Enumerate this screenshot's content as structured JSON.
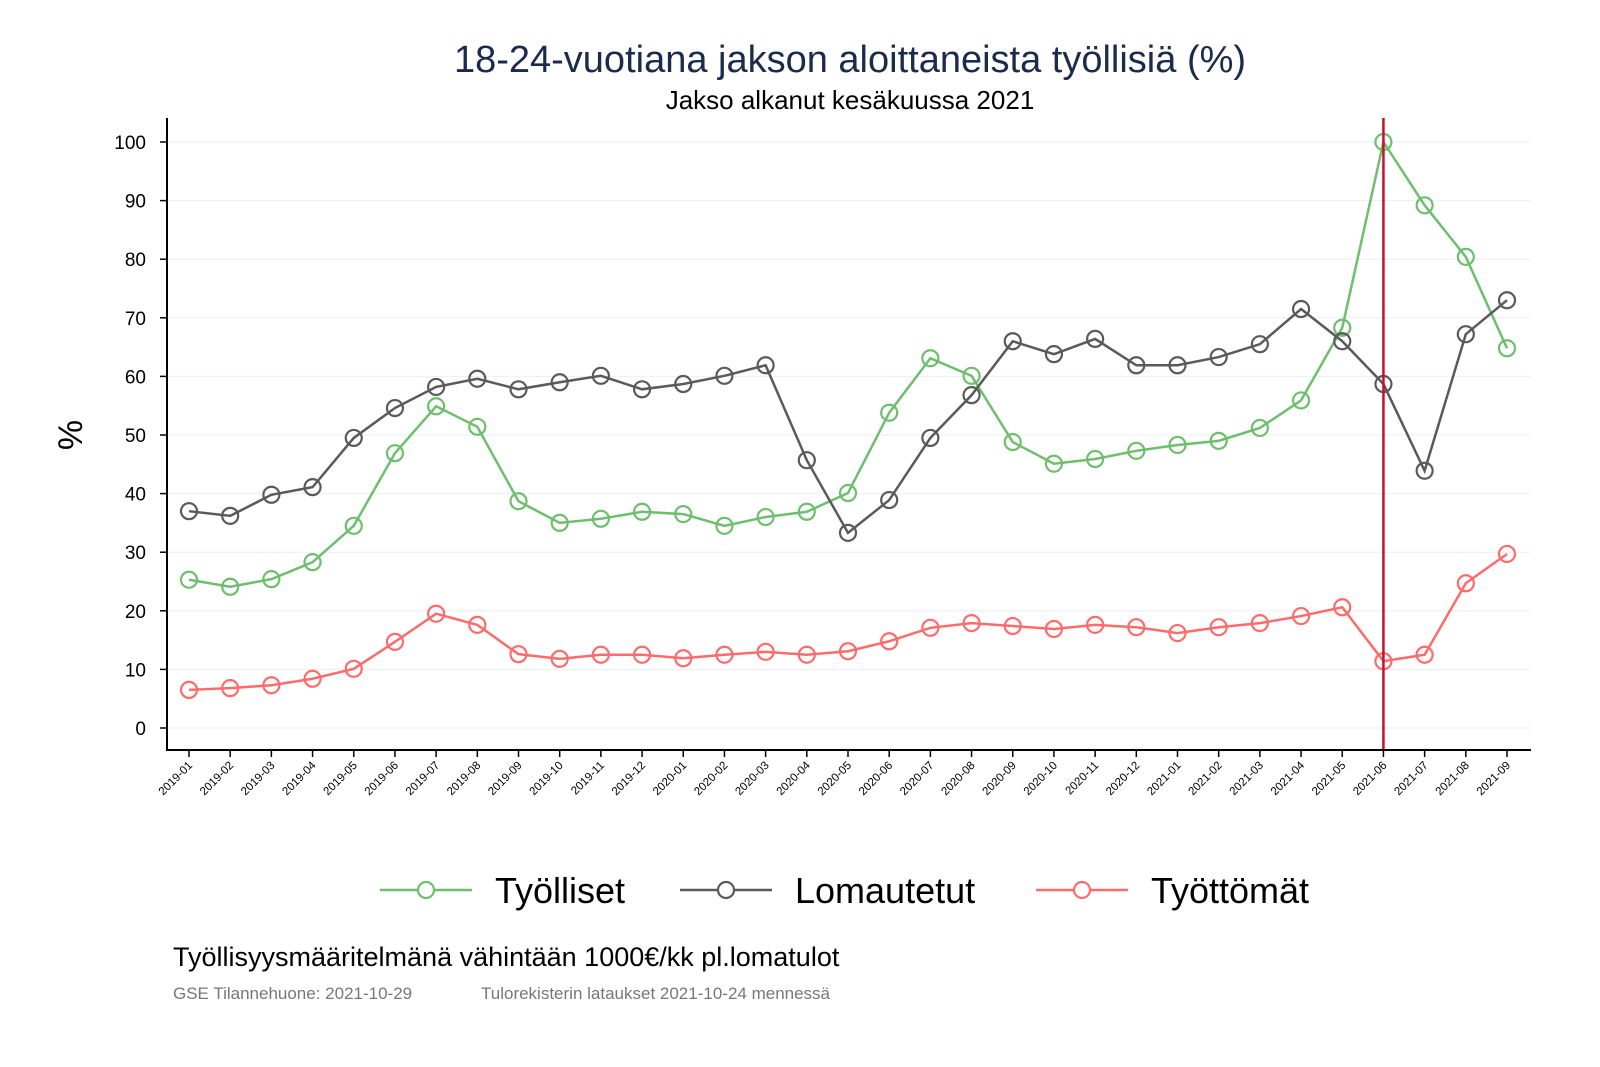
{
  "chart_data": {
    "type": "line",
    "title": "18-24-vuotiana jakson aloittaneista työllisiä (%)",
    "subtitle": "Jakso alkanut kesäkuussa 2021",
    "xlabel": "",
    "ylabel": "%",
    "ylim": [
      0,
      100
    ],
    "yticks": [
      0,
      10,
      20,
      30,
      40,
      50,
      60,
      70,
      80,
      90,
      100
    ],
    "grid": true,
    "legend_position": "bottom",
    "reference_line": {
      "x": "2021-06",
      "color": "#c8102e"
    },
    "x": [
      "2019-01",
      "2019-02",
      "2019-03",
      "2019-04",
      "2019-05",
      "2019-06",
      "2019-07",
      "2019-08",
      "2019-09",
      "2019-10",
      "2019-11",
      "2019-12",
      "2020-01",
      "2020-02",
      "2020-03",
      "2020-04",
      "2020-05",
      "2020-06",
      "2020-07",
      "2020-08",
      "2020-09",
      "2020-10",
      "2020-11",
      "2020-12",
      "2021-01",
      "2021-02",
      "2021-03",
      "2021-04",
      "2021-05",
      "2021-06",
      "2021-07",
      "2021-08",
      "2021-09"
    ],
    "series": [
      {
        "name": "Työlliset",
        "color": "#6dbf6d",
        "values": [
          25.3,
          24.1,
          25.4,
          28.3,
          34.5,
          46.9,
          54.9,
          51.4,
          38.7,
          35.0,
          35.7,
          36.9,
          36.5,
          34.5,
          36.0,
          36.9,
          40.1,
          53.8,
          63.1,
          60.1,
          48.8,
          45.1,
          45.9,
          47.3,
          48.3,
          49.0,
          51.2,
          55.9,
          68.3,
          100,
          89.2,
          80.4,
          64.8
        ]
      },
      {
        "name": "Lomautetut",
        "color": "#5a5a5a",
        "values": [
          37.0,
          36.2,
          39.8,
          41.1,
          49.5,
          54.6,
          58.2,
          59.6,
          57.8,
          59.0,
          60.1,
          57.8,
          58.7,
          60.1,
          61.9,
          45.7,
          33.3,
          38.9,
          49.5,
          56.8,
          66.0,
          63.8,
          66.4,
          61.9,
          61.9,
          63.3,
          65.5,
          71.5,
          66.0,
          58.7,
          43.9,
          67.2,
          73.0
        ]
      },
      {
        "name": "Työttömät",
        "color": "#ff6b6b",
        "values": [
          6.5,
          6.8,
          7.3,
          8.4,
          10.1,
          14.7,
          19.5,
          17.6,
          12.6,
          11.8,
          12.5,
          12.5,
          11.9,
          12.5,
          13.0,
          12.5,
          13.1,
          14.8,
          17.1,
          17.9,
          17.4,
          16.9,
          17.6,
          17.2,
          16.2,
          17.2,
          17.9,
          19.1,
          20.6,
          11.4,
          12.5,
          24.7,
          29.7
        ]
      }
    ],
    "note": "Työllisyysmääritelmänä vähintään 1000€/kk pl.lomatulot",
    "source_left": "GSE Tilannehuone: 2021-10-29",
    "source_right": "Tulorekisterin lataukset 2021-10-24 mennessä"
  }
}
